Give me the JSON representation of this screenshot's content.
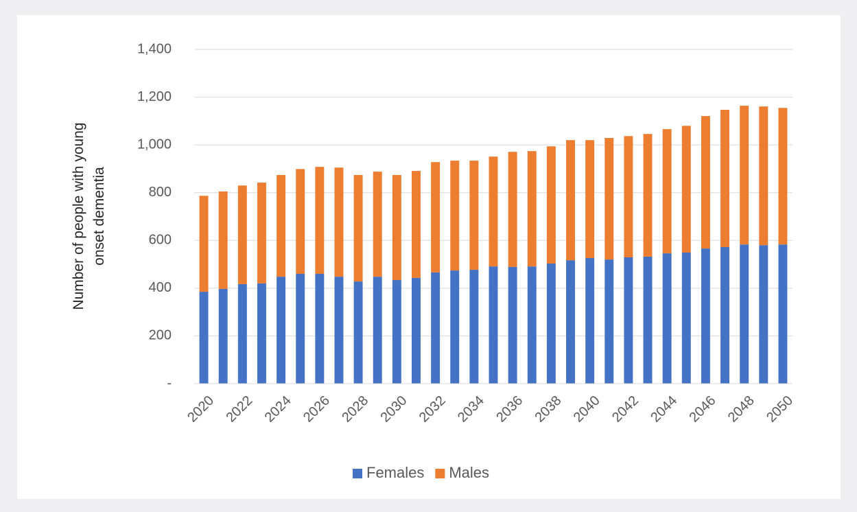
{
  "chart_data": {
    "type": "stacked-bar",
    "y_label": "Number of people with young onset dementia",
    "categories": [
      "2020",
      null,
      "2022",
      null,
      "2024",
      null,
      "2026",
      null,
      "2028",
      null,
      "2030",
      null,
      "2032",
      null,
      "2034",
      null,
      "2036",
      null,
      "2038",
      null,
      "2040",
      null,
      "2042",
      null,
      "2044",
      null,
      "2046",
      null,
      "2048",
      null,
      "2050"
    ],
    "series": [
      {
        "name": "Females",
        "color": "#4472c4",
        "values": [
          385,
          397,
          417,
          420,
          448,
          460,
          460,
          448,
          428,
          448,
          434,
          443,
          466,
          474,
          477,
          491,
          489,
          491,
          503,
          517,
          526,
          520,
          529,
          532,
          546,
          549,
          566,
          572,
          583,
          580,
          583
        ]
      },
      {
        "name": "Males",
        "color": "#ed7d31",
        "values": [
          402,
          408,
          413,
          422,
          426,
          439,
          448,
          457,
          446,
          440,
          440,
          448,
          462,
          460,
          457,
          460,
          482,
          483,
          491,
          503,
          494,
          509,
          508,
          514,
          520,
          531,
          555,
          575,
          581,
          581,
          572
        ]
      }
    ],
    "ylim": [
      0,
      1400
    ],
    "yticks": [
      {
        "value": 0,
        "label": "-"
      },
      200,
      400,
      600,
      800,
      {
        "value": 1000,
        "label": "1,000"
      },
      {
        "value": 1200,
        "label": "1,200"
      },
      {
        "value": 1400,
        "label": "1,400"
      }
    ],
    "grid": true,
    "legend": "bottom"
  }
}
